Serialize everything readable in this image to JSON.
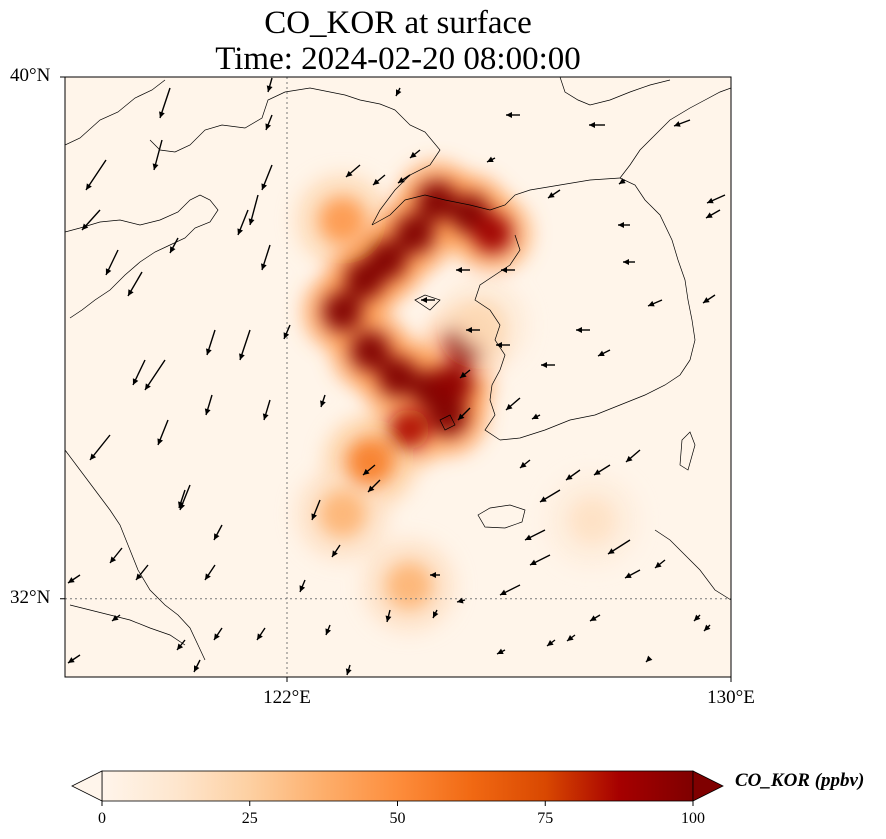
{
  "title": {
    "line1": "CO_KOR at surface",
    "line2": "Time: 2024-02-20 08:00:00"
  },
  "map": {
    "lon_range": [
      118,
      130
    ],
    "lat_range": [
      30.8,
      40
    ],
    "lat_labels": [
      {
        "value": 40,
        "label": "40°N"
      },
      {
        "value": 32,
        "label": "32°N"
      }
    ],
    "lon_labels": [
      {
        "value": 122,
        "label": "122°E"
      },
      {
        "value": 130,
        "label": "130°E"
      }
    ],
    "gridlines": {
      "lon": 122,
      "lat": 32,
      "style": "dotted"
    },
    "background_color": "#fff5ea",
    "coastline_color": "#000000"
  },
  "colorbar": {
    "label": "CO_KOR (ppbv)",
    "min": 0,
    "max": 100,
    "extend": "both",
    "ticks": [
      {
        "value": 0,
        "label": "0"
      },
      {
        "value": 25,
        "label": "25"
      },
      {
        "value": 50,
        "label": "50"
      },
      {
        "value": 75,
        "label": "75"
      },
      {
        "value": 100,
        "label": "100"
      }
    ],
    "colormap": [
      "#fff5eb",
      "#fee6ce",
      "#fdd0a2",
      "#fdae6b",
      "#fd8d3c",
      "#f16913",
      "#d94801",
      "#a60000",
      "#7f0000"
    ]
  },
  "plume": [
    {
      "lon": 123.0,
      "lat": 37.8,
      "value": 45
    },
    {
      "lon": 124.7,
      "lat": 38.1,
      "value": 100
    },
    {
      "lon": 125.3,
      "lat": 37.9,
      "value": 100
    },
    {
      "lon": 125.7,
      "lat": 37.6,
      "value": 90
    },
    {
      "lon": 124.3,
      "lat": 37.6,
      "value": 100
    },
    {
      "lon": 123.8,
      "lat": 37.2,
      "value": 100
    },
    {
      "lon": 123.4,
      "lat": 36.9,
      "value": 100
    },
    {
      "lon": 123.0,
      "lat": 36.4,
      "value": 100
    },
    {
      "lon": 123.5,
      "lat": 35.8,
      "value": 100
    },
    {
      "lon": 124.0,
      "lat": 35.4,
      "value": 100
    },
    {
      "lon": 124.6,
      "lat": 35.2,
      "value": 100
    },
    {
      "lon": 125.0,
      "lat": 35.3,
      "value": 95
    },
    {
      "lon": 125.2,
      "lat": 35.9,
      "value": 90
    },
    {
      "lon": 124.9,
      "lat": 34.8,
      "value": 100
    },
    {
      "lon": 124.2,
      "lat": 34.6,
      "value": 85
    },
    {
      "lon": 123.5,
      "lat": 34.1,
      "value": 55
    },
    {
      "lon": 123.0,
      "lat": 33.3,
      "value": 35
    },
    {
      "lon": 124.2,
      "lat": 32.2,
      "value": 35
    },
    {
      "lon": 125.5,
      "lat": 36.2,
      "value": 20
    },
    {
      "lon": 127.5,
      "lat": 33.2,
      "value": 15
    }
  ]
}
